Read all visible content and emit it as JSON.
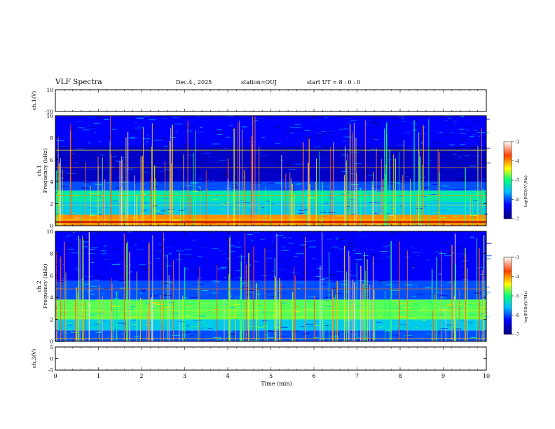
{
  "header": {
    "title": "VLF Spectra",
    "date": "Dec.4 , 2025",
    "station": "station=OUJ",
    "start_ut": "start UT =  8 : 0 : 0"
  },
  "chart_data": [
    {
      "type": "line",
      "panel": "ch1-waveform",
      "ylabel": "ch.1(V)",
      "ylim": [
        -10,
        10
      ],
      "yticks": [
        "10",
        "-10"
      ],
      "xlim": [
        0,
        10
      ],
      "series": [
        {
          "values_summary": "noisy baseline near 3 V with sparse negative spikes"
        }
      ]
    },
    {
      "type": "heatmap",
      "panel": "ch1-spectrogram",
      "ylabel": "ch.1 Frequency (kHz)",
      "ylim": [
        0,
        10
      ],
      "yticks": [
        "10",
        "8",
        "6",
        "4",
        "2",
        "0"
      ],
      "xlim": [
        0,
        10
      ],
      "colorbar": {
        "label": "log(PSD)(V²/Hz)",
        "range": [
          -7,
          -3
        ],
        "ticks": [
          "-3",
          "-4",
          "-5",
          "-6",
          "-7"
        ]
      },
      "bands_khz": [
        {
          "from": 0,
          "to": 1.0,
          "level": -4.0
        },
        {
          "from": 1.0,
          "to": 2.2,
          "level": -5.5
        },
        {
          "from": 2.2,
          "to": 3.2,
          "level": -5.2
        },
        {
          "from": 3.2,
          "to": 4.0,
          "level": -6.0
        },
        {
          "from": 4.0,
          "to": 7.2,
          "level": -6.6
        },
        {
          "from": 7.2,
          "to": 10,
          "level": -6.3
        }
      ]
    },
    {
      "type": "heatmap",
      "panel": "ch2-spectrogram",
      "ylabel": "ch.2 Frequency (kHz)",
      "ylim": [
        0,
        10
      ],
      "yticks": [
        "10",
        "8",
        "6",
        "4",
        "2",
        "0"
      ],
      "xlim": [
        0,
        10
      ],
      "colorbar": {
        "label": "log(PSD)(V²/Hz)",
        "range": [
          -7,
          -3
        ],
        "ticks": [
          "-3",
          "-4",
          "-5",
          "-6",
          "-7"
        ]
      },
      "bands_khz": [
        {
          "from": 0,
          "to": 1.0,
          "level": -6.0
        },
        {
          "from": 1.0,
          "to": 2.0,
          "level": -5.5
        },
        {
          "from": 2.0,
          "to": 3.8,
          "level": -4.8
        },
        {
          "from": 3.8,
          "to": 5.5,
          "level": -6.0
        },
        {
          "from": 5.5,
          "to": 10,
          "level": -6.3
        }
      ]
    },
    {
      "type": "line",
      "panel": "ch3-waveform",
      "ylabel": "ch.3(V)",
      "ylim": [
        -5,
        5
      ],
      "yticks": [
        "5",
        "0",
        "-5"
      ],
      "xlim": [
        0,
        10
      ],
      "xlabel": "Time (min)",
      "xticks": [
        "0",
        "1",
        "2",
        "3",
        "4",
        "5",
        "6",
        "7",
        "8",
        "9",
        "10"
      ],
      "series": [
        {
          "values_summary": "flat trace near -1.5 V"
        }
      ]
    }
  ]
}
